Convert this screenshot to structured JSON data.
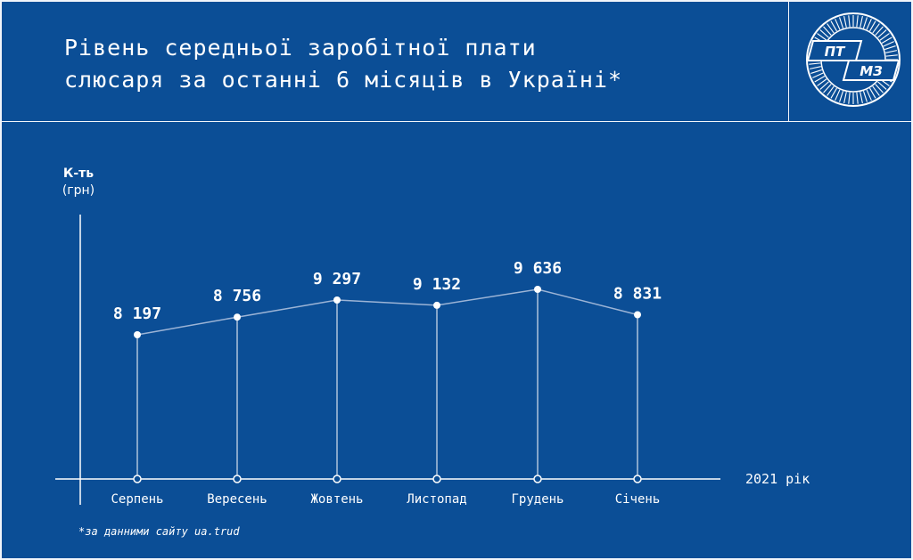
{
  "header": {
    "title_line1": "Рівень середньої заробітної плати",
    "title_line2": "слюсаря за останні 6 місяців в Україні*"
  },
  "logo": {
    "text_top": "ПТ",
    "text_bottom": "МЗ"
  },
  "footnote": "*за данними сайту ua.trud",
  "colors": {
    "background": "#0b4e96",
    "foreground": "#ffffff",
    "line": "#9cb4d6"
  },
  "chart_data": {
    "type": "line",
    "title": "Рівень середньої заробітної плати слюсаря за останні 6 місяців в Україні*",
    "ylabel_line1": "К-ть",
    "ylabel_line2": "(грн)",
    "xlabel": "2021 рік",
    "categories": [
      "Серпень",
      "Вересень",
      "Жовтень",
      "Листопад",
      "Грудень",
      "Січень"
    ],
    "values": [
      8197,
      8756,
      9297,
      9132,
      9636,
      8831
    ],
    "value_labels": [
      "8 197",
      "8 756",
      "9 297",
      "9 132",
      "9 636",
      "8 831"
    ],
    "grid": false,
    "legend": "none"
  }
}
